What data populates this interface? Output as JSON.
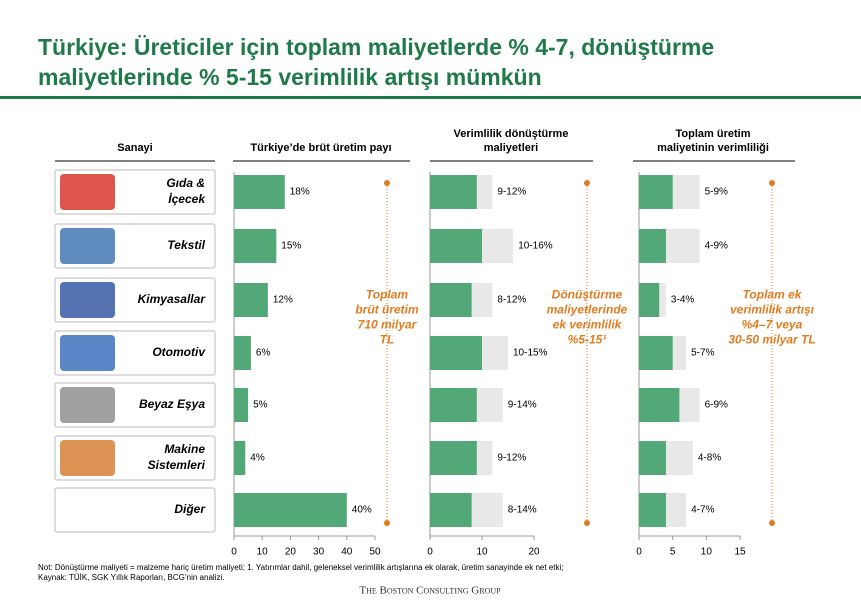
{
  "header": {
    "title": [
      "Türkiye: Üreticiler için toplam maliyetlerde % 4-7, dönüştürme",
      "maliyetlerinde % 5-15 verimlilik artışı mümkün"
    ]
  },
  "sector_header": "Sanayi",
  "chart_data": [
    {
      "type": "bar",
      "title": "Türkiye’de brüt üretim payı",
      "categories": [
        [
          "Gıda &",
          "İçecek"
        ],
        [
          "Tekstil"
        ],
        [
          "Kimyasallar"
        ],
        [
          "Otomotiv"
        ],
        [
          "Beyaz Eşya"
        ],
        [
          "Makine",
          "Sistemleri"
        ],
        [
          "Diğer"
        ]
      ],
      "values": [
        18,
        15,
        12,
        6,
        5,
        4,
        40
      ],
      "value_labels": [
        "18%",
        "15%",
        "12%",
        "6%",
        "5%",
        "4%",
        "40%"
      ],
      "color": "#52a876",
      "xlim": [
        0,
        50
      ],
      "xticks": [
        0,
        10,
        20,
        30,
        40,
        50
      ],
      "annotation": [
        "Toplam",
        "brüt üretim",
        "710 milyar",
        "TL"
      ],
      "annotation_color": "#e07b20"
    },
    {
      "type": "range",
      "title": [
        "Verimlilik dönüştürme",
        "maliyetleri"
      ],
      "values": [
        [
          9,
          12
        ],
        [
          10,
          16
        ],
        [
          8,
          12
        ],
        [
          10,
          15
        ],
        [
          9,
          14
        ],
        [
          9,
          12
        ],
        [
          8,
          14
        ]
      ],
      "value_labels": [
        "9-12%",
        "10-16%",
        "8-12%",
        "10-15%",
        "9-14%",
        "9-12%",
        "8-14%"
      ],
      "color": "#52a876",
      "range_color": "#e8e8e8",
      "xlim": [
        0,
        20
      ],
      "xticks": [
        0,
        10,
        20
      ],
      "annotation": [
        "Dönüştürme",
        "maliyetlerinde",
        "ek verimlilik",
        "%5-15¹"
      ],
      "annotation_color": "#e07b20"
    },
    {
      "type": "range",
      "title": [
        "Toplam üretim",
        "maliyetinin verimliliği"
      ],
      "values": [
        [
          5,
          9
        ],
        [
          4,
          9
        ],
        [
          3,
          4
        ],
        [
          5,
          7
        ],
        [
          6,
          9
        ],
        [
          4,
          8
        ],
        [
          4,
          7
        ]
      ],
      "value_labels": [
        "5-9%",
        "4-9%",
        "3-4%",
        "5-7%",
        "6-9%",
        "4-8%",
        "4-7%"
      ],
      "color": "#52a876",
      "range_color": "#e8e8e8",
      "xlim": [
        0,
        15
      ],
      "xticks": [
        0,
        5,
        10,
        15
      ],
      "annotation": [
        "Toplam ek",
        "verimlilik artışı",
        "%4–7 veya",
        "30-50 milyar TL"
      ],
      "annotation_color": "#e07b20"
    }
  ],
  "footnote": [
    "Not: Dönüştürme maliyeti = malzeme hariç üretim maliyeti; 1. Yatırımlar dahil, geleneksel verimlilik artışlarına ek olarak, üretim sanayinde ek net etki;",
    "Kaynak: TÜİK, SGK Yıllık Raporları, BCG’nin analizi."
  ],
  "logo": "The Boston Consulting Group"
}
